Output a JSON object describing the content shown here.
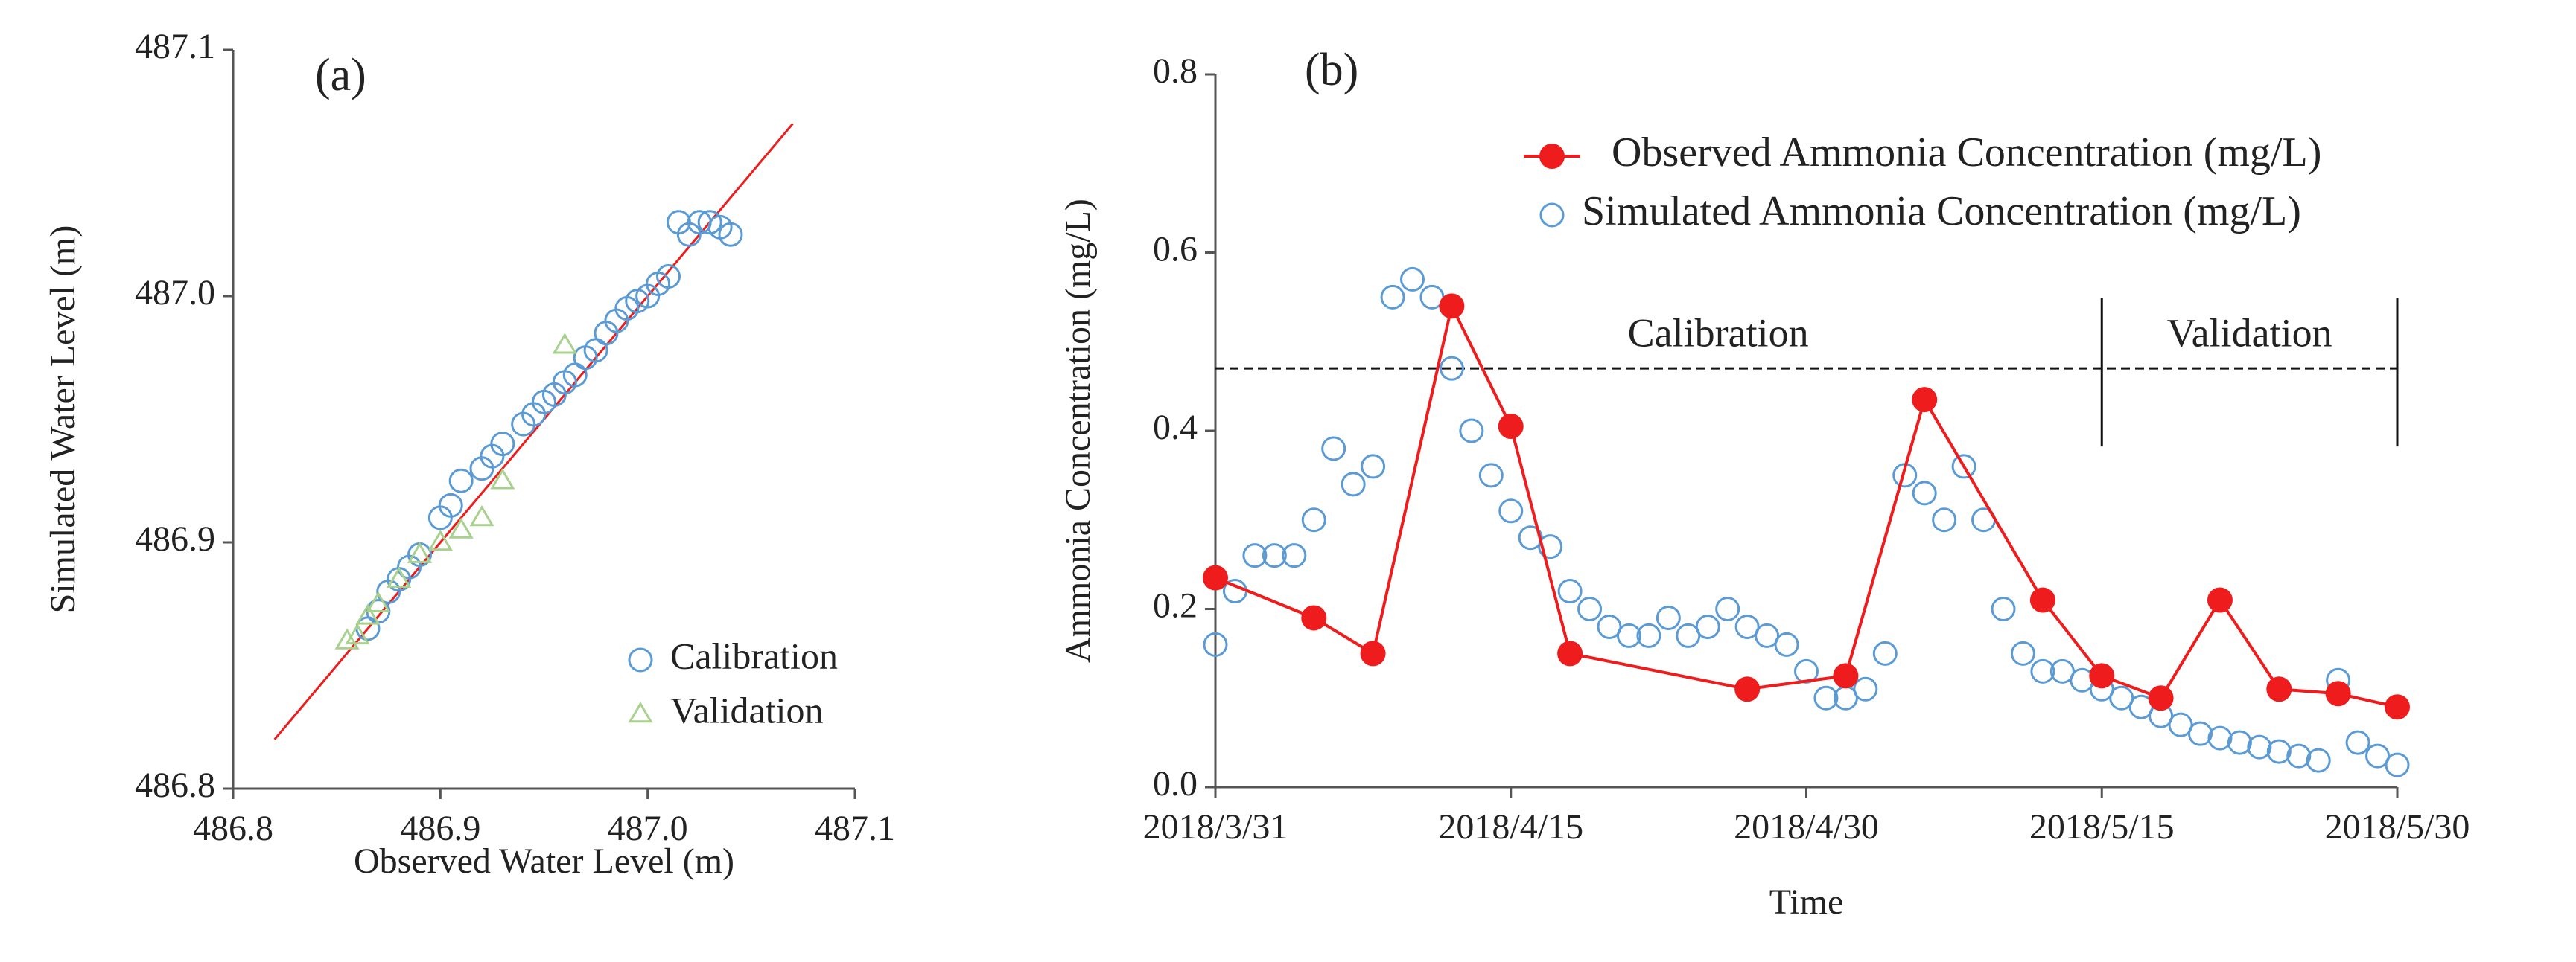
{
  "chart_data": [
    {
      "type": "scatter",
      "panel_label": "(a)",
      "x_label": "Observed Water Level (m)",
      "y_label": "Simulated Water Level (m)",
      "xlim": [
        486.8,
        487.1
      ],
      "ylim": [
        486.8,
        487.1
      ],
      "xticks": [
        486.8,
        486.9,
        {
          "value": 487,
          "label": "487.0"
        },
        487.1
      ],
      "yticks": [
        486.8,
        486.9,
        {
          "value": 487,
          "label": "487.0"
        },
        487.1
      ],
      "identity_line": {
        "color": "#ee1c1c",
        "range": [
          486.82,
          487.07
        ]
      },
      "legend": "lower right",
      "series": [
        {
          "name": "Calibration",
          "color": "#5b9bd5",
          "marker": "circle",
          "x": [
            486.865,
            486.87,
            486.875,
            486.88,
            486.885,
            486.89,
            486.9,
            486.905,
            486.91,
            486.92,
            486.925,
            486.93,
            486.94,
            486.945,
            486.95,
            486.955,
            486.96,
            486.965,
            486.97,
            486.975,
            486.98,
            486.985,
            486.99,
            486.995,
            487.0,
            487.005,
            487.01,
            487.015,
            487.02,
            487.025,
            487.03,
            487.035,
            487.04
          ],
          "values": [
            486.865,
            486.872,
            486.88,
            486.885,
            486.89,
            486.895,
            486.91,
            486.915,
            486.925,
            486.93,
            486.935,
            486.94,
            486.948,
            486.952,
            486.957,
            486.96,
            486.965,
            486.968,
            486.975,
            486.978,
            486.985,
            486.99,
            486.995,
            486.998,
            487.0,
            487.005,
            487.008,
            487.03,
            487.025,
            487.03,
            487.03,
            487.028,
            487.025
          ]
        },
        {
          "name": "Validation",
          "color": "#a9d18e",
          "marker": "triangle",
          "x": [
            486.855,
            486.86,
            486.865,
            486.87,
            486.88,
            486.89,
            486.9,
            486.91,
            486.92,
            486.93,
            486.96
          ],
          "values": [
            486.86,
            486.862,
            486.87,
            486.875,
            486.885,
            486.895,
            486.9,
            486.905,
            486.91,
            486.925,
            486.98
          ]
        }
      ]
    },
    {
      "type": "line",
      "panel_label": "(b)",
      "x_label": "Time",
      "y_label": "Ammonia Concentration (mg/L)",
      "xlim": [
        "2018/3/31",
        "2018/5/30"
      ],
      "ylim": [
        0,
        0.8
      ],
      "xticks": [
        "2018/3/31",
        "2018/4/15",
        "2018/4/30",
        "2018/5/15",
        "2018/5/30"
      ],
      "yticks": [
        {
          "value": 0,
          "label": "0.0"
        },
        0.2,
        0.4,
        0.6,
        0.8
      ],
      "legend": "upper right",
      "annotations": {
        "calibration": "Calibration",
        "validation": "Validation",
        "reference_level": 0.47,
        "split": "2018/5/15"
      },
      "series": [
        {
          "name": "Observed Ammonia Concentration (mg/L)",
          "color": "#ee1c1c",
          "marker": "filled",
          "x": [
            "2018/3/31",
            "2018/4/5",
            "2018/4/8",
            "2018/4/12",
            "2018/4/15",
            "2018/4/18",
            "2018/4/27",
            "2018/5/2",
            "2018/5/6",
            "2018/5/12",
            "2018/5/15",
            "2018/5/18",
            "2018/5/21",
            "2018/5/24",
            "2018/5/27",
            "2018/5/30"
          ],
          "values": [
            0.235,
            0.19,
            0.15,
            0.54,
            0.405,
            0.15,
            0.11,
            0.125,
            0.435,
            0.21,
            0.125,
            0.1,
            0.21,
            0.11,
            0.105,
            0.09
          ]
        },
        {
          "name": "Simulated Ammonia Concentration (mg/L)",
          "color": "#5b9bd5",
          "marker": "open",
          "x": [
            "2018/3/31",
            "2018/4/1",
            "2018/4/2",
            "2018/4/3",
            "2018/4/4",
            "2018/4/5",
            "2018/4/6",
            "2018/4/7",
            "2018/4/8",
            "2018/4/9",
            "2018/4/10",
            "2018/4/11",
            "2018/4/12",
            "2018/4/13",
            "2018/4/14",
            "2018/4/15",
            "2018/4/16",
            "2018/4/17",
            "2018/4/18",
            "2018/4/19",
            "2018/4/20",
            "2018/4/21",
            "2018/4/22",
            "2018/4/23",
            "2018/4/24",
            "2018/4/25",
            "2018/4/26",
            "2018/4/27",
            "2018/4/28",
            "2018/4/29",
            "2018/4/30",
            "2018/5/1",
            "2018/5/2",
            "2018/5/3",
            "2018/5/4",
            "2018/5/5",
            "2018/5/6",
            "2018/5/7",
            "2018/5/8",
            "2018/5/9",
            "2018/5/10",
            "2018/5/11",
            "2018/5/12",
            "2018/5/13",
            "2018/5/14",
            "2018/5/15",
            "2018/5/16",
            "2018/5/17",
            "2018/5/18",
            "2018/5/19",
            "2018/5/20",
            "2018/5/21",
            "2018/5/22",
            "2018/5/23",
            "2018/5/24",
            "2018/5/25",
            "2018/5/26",
            "2018/5/27",
            "2018/5/28",
            "2018/5/29",
            "2018/5/30"
          ],
          "values": [
            0.16,
            0.22,
            0.26,
            0.26,
            0.26,
            0.3,
            0.38,
            0.34,
            0.36,
            0.55,
            0.57,
            0.55,
            0.47,
            0.4,
            0.35,
            0.31,
            0.28,
            0.27,
            0.22,
            0.2,
            0.18,
            0.17,
            0.17,
            0.19,
            0.17,
            0.18,
            0.2,
            0.18,
            0.17,
            0.16,
            0.13,
            0.1,
            0.1,
            0.11,
            0.15,
            0.35,
            0.33,
            0.3,
            0.36,
            0.3,
            0.2,
            0.15,
            0.13,
            0.13,
            0.12,
            0.11,
            0.1,
            0.09,
            0.08,
            0.07,
            0.06,
            0.055,
            0.05,
            0.045,
            0.04,
            0.035,
            0.03,
            0.12,
            0.05,
            0.035,
            0.025
          ]
        }
      ]
    }
  ]
}
